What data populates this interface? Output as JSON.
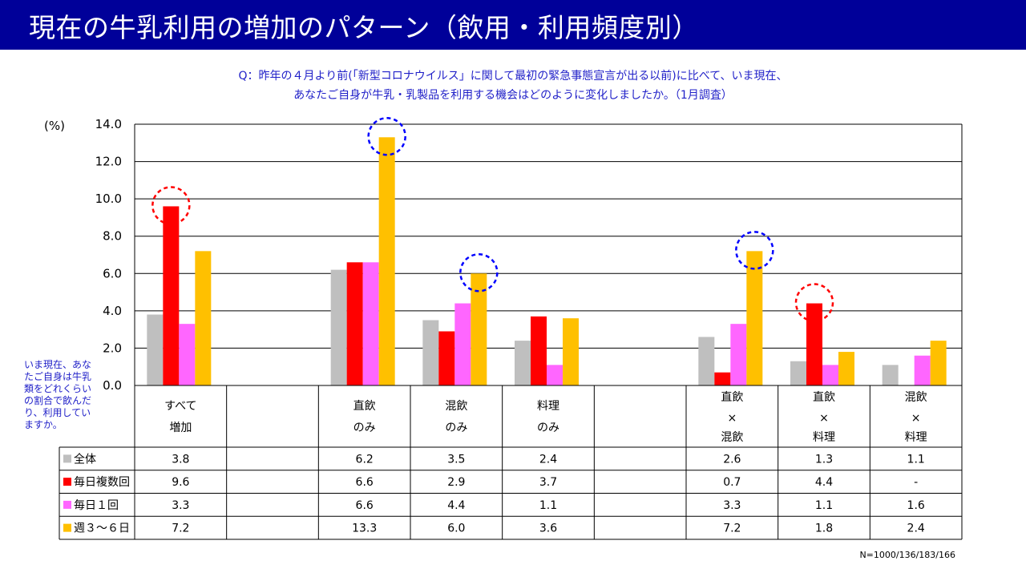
{
  "header": {
    "title": "現在の牛乳利用の増加のパターン（飲用・利用頻度別）"
  },
  "question": {
    "line1": "Q：昨年の４月より前(「新型コロナウイルス」に関して最初の緊急事態宣言が出る以前)に比べて、いま現在、",
    "line2": "あなたご自身が牛乳・乳製品を利用する機会はどのように変化しましたか。（1月調査）"
  },
  "unit_label": "(%)",
  "side_note": "いま現在、あなたご自身は牛乳類をどれくらいの割合で飲んだり、利用していますか。",
  "footnote": "N=1000/136/183/166",
  "chart_data": {
    "type": "bar",
    "ylim": [
      0,
      14
    ],
    "yticks": [
      "0.0",
      "2.0",
      "4.0",
      "6.0",
      "8.0",
      "10.0",
      "12.0",
      "14.0"
    ],
    "grid": true,
    "categories": [
      [
        "すべて",
        "増加"
      ],
      [],
      [
        "直飲",
        "のみ"
      ],
      [
        "混飲",
        "のみ"
      ],
      [
        "料理",
        "のみ"
      ],
      [],
      [
        "直飲",
        "×",
        "混飲"
      ],
      [
        "直飲",
        "×",
        "料理"
      ],
      [
        "混飲",
        "×",
        "料理"
      ]
    ],
    "series": [
      {
        "name": "全体",
        "color": "#bfbfbf",
        "values": [
          3.8,
          null,
          6.2,
          3.5,
          2.4,
          null,
          2.6,
          1.3,
          1.1
        ],
        "labels": [
          "3.8",
          "",
          "6.2",
          "3.5",
          "2.4",
          "",
          "2.6",
          "1.3",
          "1.1"
        ]
      },
      {
        "name": "毎日複数回",
        "color": "#ff0000",
        "values": [
          9.6,
          null,
          6.6,
          2.9,
          3.7,
          null,
          0.7,
          4.4,
          0
        ],
        "labels": [
          "9.6",
          "",
          "6.6",
          "2.9",
          "3.7",
          "",
          "0.7",
          "4.4",
          "-"
        ]
      },
      {
        "name": "毎日１回",
        "color": "#ff66ff",
        "values": [
          3.3,
          null,
          6.6,
          4.4,
          1.1,
          null,
          3.3,
          1.1,
          1.6
        ],
        "labels": [
          "3.3",
          "",
          "6.6",
          "4.4",
          "1.1",
          "",
          "3.3",
          "1.1",
          "1.6"
        ]
      },
      {
        "name": "週３～６日",
        "color": "#ffc000",
        "values": [
          7.2,
          null,
          13.3,
          6.0,
          3.6,
          null,
          7.2,
          1.8,
          2.4
        ],
        "labels": [
          "7.2",
          "",
          "13.3",
          "6.0",
          "3.6",
          "",
          "7.2",
          "1.8",
          "2.4"
        ]
      }
    ],
    "highlights": [
      {
        "category_index": 0,
        "series_index": 1,
        "color": "#ff0000"
      },
      {
        "category_index": 2,
        "series_index": 3,
        "color": "#0000ff"
      },
      {
        "category_index": 3,
        "series_index": 3,
        "color": "#0000ff"
      },
      {
        "category_index": 6,
        "series_index": 3,
        "color": "#0000ff"
      },
      {
        "category_index": 7,
        "series_index": 1,
        "color": "#ff0000"
      }
    ]
  }
}
